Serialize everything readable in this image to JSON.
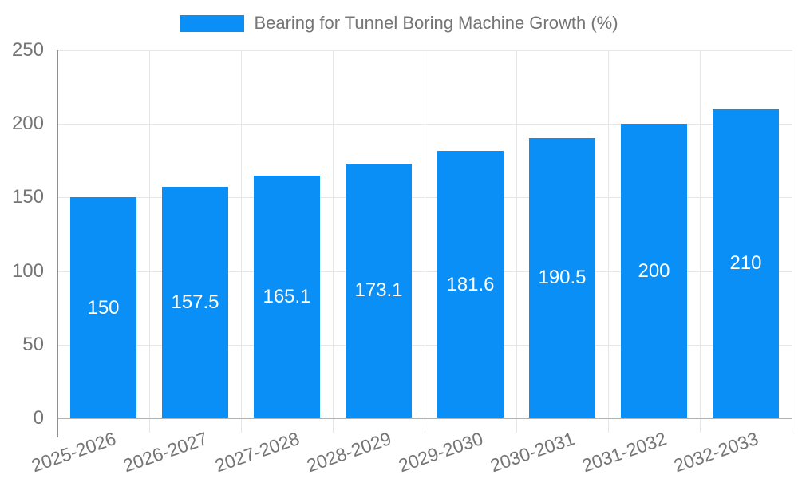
{
  "chart_data": {
    "type": "bar",
    "title": "Bearing for Tunnel Boring Machine Growth (%)",
    "categories": [
      "2025-2026",
      "2026-2027",
      "2027-2028",
      "2028-2029",
      "2029-2030",
      "2030-2031",
      "2031-2032",
      "2032-2033"
    ],
    "values": [
      150,
      157.5,
      165.1,
      173.1,
      181.6,
      190.5,
      200,
      210
    ],
    "bar_labels": [
      "150",
      "157.5",
      "165.1",
      "173.1",
      "181.6",
      "190.5",
      "200",
      "210"
    ],
    "xlabel": "",
    "ylabel": "",
    "ylim": [
      0,
      250
    ],
    "yticks": [
      0,
      50,
      100,
      150,
      200,
      250
    ],
    "grid": true,
    "legend_position": "top-center",
    "colors": {
      "bar": "#0a8ff7",
      "tick_label": "#757575",
      "grid_line": "#e6e6e6",
      "axis_line": "#8f8f8f",
      "baseline": "#b3b3b3",
      "bar_label": "#ffffff",
      "background": "#ffffff"
    }
  }
}
